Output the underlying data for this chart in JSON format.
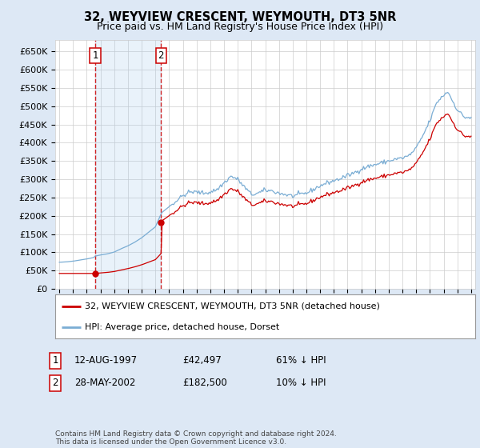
{
  "title": "32, WEYVIEW CRESCENT, WEYMOUTH, DT3 5NR",
  "subtitle": "Price paid vs. HM Land Registry's House Price Index (HPI)",
  "sale1_date": 1997.62,
  "sale1_price": 42497,
  "sale2_date": 2002.41,
  "sale2_price": 182500,
  "hpi_color": "#7aadd4",
  "price_color": "#cc0000",
  "vline_color": "#cc0000",
  "background_color": "#dde8f5",
  "plot_bg": "#ffffff",
  "legend_line1": "32, WEYVIEW CRESCENT, WEYMOUTH, DT3 5NR (detached house)",
  "legend_line2": "HPI: Average price, detached house, Dorset",
  "table_row1": [
    "1",
    "12-AUG-1997",
    "£42,497",
    "61% ↓ HPI"
  ],
  "table_row2": [
    "2",
    "28-MAY-2002",
    "£182,500",
    "10% ↓ HPI"
  ],
  "footnote": "Contains HM Land Registry data © Crown copyright and database right 2024.\nThis data is licensed under the Open Government Licence v3.0.",
  "ylim": [
    0,
    680000
  ],
  "xlim": [
    1994.7,
    2025.3
  ],
  "yticks": [
    0,
    50000,
    100000,
    150000,
    200000,
    250000,
    300000,
    350000,
    400000,
    450000,
    500000,
    550000,
    600000,
    650000
  ],
  "ytick_labels": [
    "£0",
    "£50K",
    "£100K",
    "£150K",
    "£200K",
    "£250K",
    "£300K",
    "£350K",
    "£400K",
    "£450K",
    "£500K",
    "£550K",
    "£600K",
    "£650K"
  ]
}
